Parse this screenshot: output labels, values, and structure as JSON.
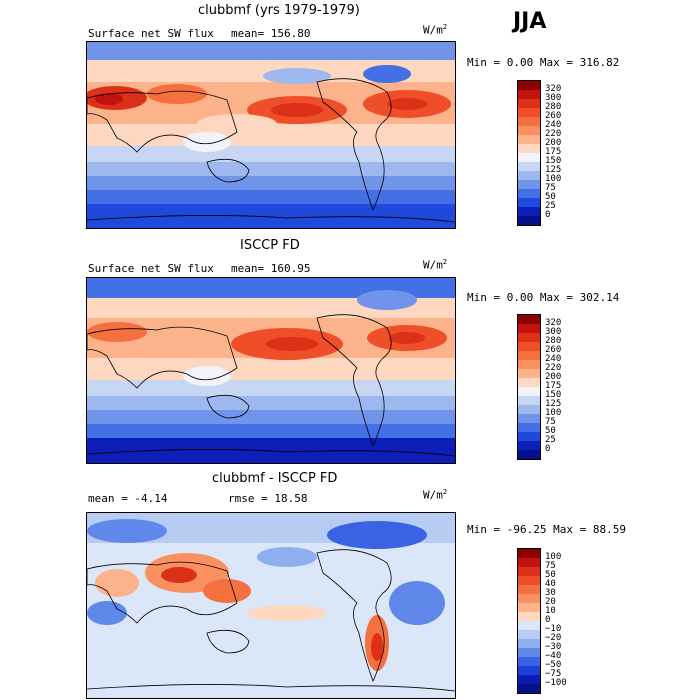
{
  "season": "JJA",
  "panels": [
    {
      "title": "clubbmf (yrs 1979-1979)",
      "left_label": "Surface net SW flux",
      "mean_text": "mean= 156.80",
      "units": "W/m",
      "units_sup": "2",
      "minmax": "Min =   0.00 Max = 316.82"
    },
    {
      "title": "ISCCP FD",
      "left_label": "Surface net SW flux",
      "mean_text": "mean= 160.95",
      "units": "W/m",
      "units_sup": "2",
      "minmax": "Min =   0.00 Max = 302.14"
    },
    {
      "title": "clubbmf - ISCCP FD",
      "left_label": "mean =  -4.14",
      "mean_text": "rmse =  18.58",
      "units": "W/m",
      "units_sup": "2",
      "minmax": "Min = -96.25 Max =  88.59"
    }
  ],
  "chart_data": [
    {
      "type": "heatmap",
      "title": "clubbmf (yrs 1979-1979)",
      "subtitle": "Surface net SW flux",
      "mean": 156.8,
      "min": 0.0,
      "max": 316.82,
      "units": "W/m2",
      "colorbar_levels": [
        "320",
        "300",
        "280",
        "260",
        "240",
        "220",
        "200",
        "175",
        "150",
        "125",
        "100",
        "75",
        "50",
        "25",
        "0"
      ],
      "colorbar_colors": [
        "#8b0000",
        "#c1120f",
        "#dc3018",
        "#ee4f28",
        "#f5703f",
        "#fa9060",
        "#fcb38c",
        "#fdd7c0",
        "#f2f2fb",
        "#c7d6f3",
        "#9cb8ef",
        "#6f94ea",
        "#4470e6",
        "#1f48dc",
        "#0d1fb8",
        "#05108a"
      ]
    },
    {
      "type": "heatmap",
      "title": "ISCCP FD",
      "subtitle": "Surface net SW flux",
      "mean": 160.95,
      "min": 0.0,
      "max": 302.14,
      "units": "W/m2",
      "colorbar_levels": [
        "320",
        "300",
        "280",
        "260",
        "240",
        "220",
        "200",
        "175",
        "150",
        "125",
        "100",
        "75",
        "50",
        "25",
        "0"
      ],
      "colorbar_colors": [
        "#8b0000",
        "#c1120f",
        "#dc3018",
        "#ee4f28",
        "#f5703f",
        "#fa9060",
        "#fcb38c",
        "#fdd7c0",
        "#f2f2fb",
        "#c7d6f3",
        "#9cb8ef",
        "#6f94ea",
        "#4470e6",
        "#1f48dc",
        "#0d1fb8",
        "#05108a"
      ]
    },
    {
      "type": "heatmap",
      "title": "clubbmf - ISCCP FD",
      "mean": -4.14,
      "rmse": 18.58,
      "min": -96.25,
      "max": 88.59,
      "units": "W/m2",
      "colorbar_levels": [
        "100",
        "75",
        "50",
        "40",
        "30",
        "20",
        "10",
        "0",
        "−10",
        "−20",
        "−30",
        "−40",
        "−50",
        "−75",
        "−100"
      ],
      "colorbar_colors": [
        "#8b0000",
        "#c1120f",
        "#dc3018",
        "#ee4f28",
        "#f5703f",
        "#fa9060",
        "#fcb38c",
        "#fdd7c0",
        "#dbe6f8",
        "#b7ccf3",
        "#8eaef0",
        "#5f88ea",
        "#3a62e4",
        "#1d3fd6",
        "#0c1cb2",
        "#05108a"
      ]
    }
  ]
}
